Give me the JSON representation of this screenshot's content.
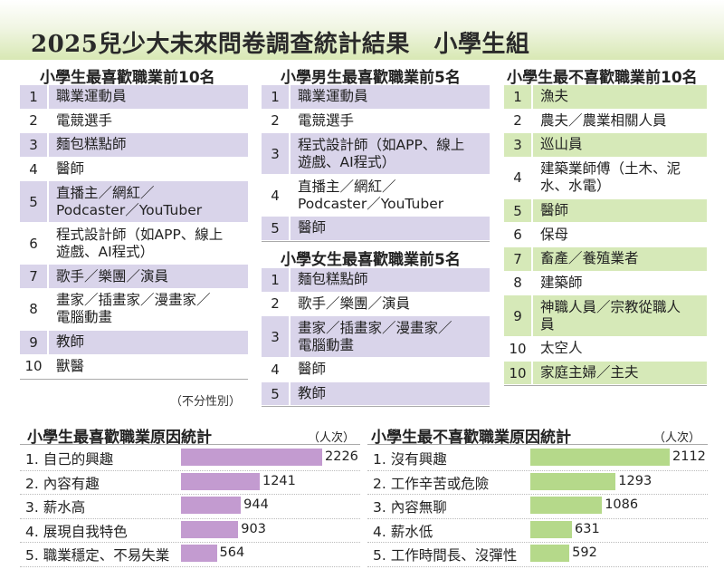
{
  "header": {
    "title": "2025兒少大未來問卷調查統計結果　小學生組"
  },
  "tables": [
    {
      "title": "小學生最喜歡職業前10名",
      "note": "（不分性別）",
      "rows": [
        {
          "rank": "1",
          "job": "職業運動員"
        },
        {
          "rank": "2",
          "job": "電競選手"
        },
        {
          "rank": "3",
          "job": "麵包糕點師"
        },
        {
          "rank": "4",
          "job": "醫師"
        },
        {
          "rank": "5",
          "job": "直播主／網紅／\nPodcaster／YouTuber"
        },
        {
          "rank": "6",
          "job": "程式設計師（如APP、線上\n遊戲、AI程式）"
        },
        {
          "rank": "7",
          "job": "歌手／樂團／演員"
        },
        {
          "rank": "8",
          "job": "畫家／插畫家／漫畫家／\n電腦動畫"
        },
        {
          "rank": "9",
          "job": "教師"
        },
        {
          "rank": "10",
          "job": "獸醫"
        }
      ]
    },
    {
      "title": "小學男生最喜歡職業前5名",
      "rows": [
        {
          "rank": "1",
          "job": "職業運動員"
        },
        {
          "rank": "2",
          "job": "電競選手"
        },
        {
          "rank": "3",
          "job": "程式設計師（如APP、線上\n遊戲、AI程式）"
        },
        {
          "rank": "4",
          "job": "直播主／網紅／\nPodcaster／YouTuber"
        },
        {
          "rank": "5",
          "job": "醫師"
        }
      ]
    },
    {
      "title": "小學女生最喜歡職業前5名",
      "rows": [
        {
          "rank": "1",
          "job": "麵包糕點師"
        },
        {
          "rank": "2",
          "job": "歌手／樂團／演員"
        },
        {
          "rank": "3",
          "job": "畫家／插畫家／漫畫家／\n電腦動畫"
        },
        {
          "rank": "4",
          "job": "醫師"
        },
        {
          "rank": "5",
          "job": "教師"
        }
      ]
    },
    {
      "title": "小學生最不喜歡職業前10名",
      "rows": [
        {
          "rank": "1",
          "job": "漁夫"
        },
        {
          "rank": "2",
          "job": "農夫／農業相關人員"
        },
        {
          "rank": "3",
          "job": "巡山員"
        },
        {
          "rank": "4",
          "job": "建築業師傅（土木、泥\n水、水電）"
        },
        {
          "rank": "5",
          "job": "醫師"
        },
        {
          "rank": "6",
          "job": "保母"
        },
        {
          "rank": "7",
          "job": "畜產／養殖業者"
        },
        {
          "rank": "8",
          "job": "建築師"
        },
        {
          "rank": "9",
          "job": "神職人員／宗教從職人\n員"
        },
        {
          "rank": "10",
          "job": "太空人"
        },
        {
          "rank": "10",
          "job": "家庭主婦／主夫"
        }
      ]
    }
  ],
  "colors": {
    "purple_shade": "#d9d4ea",
    "green_shade": "#d6e9b8",
    "purple_bar": "#c39bd0",
    "green_bar": "#b5d98a"
  },
  "chart_data": [
    {
      "type": "bar",
      "title": "小學生最喜歡職業原因統計",
      "unit": "（人次）",
      "categories": [
        "1. 自己的興趣",
        "2. 內容有趣",
        "3. 薪水高",
        "4. 展現自我特色",
        "5. 職業穩定、不易失業"
      ],
      "values": [
        2226,
        1241,
        944,
        903,
        564
      ],
      "orientation": "horizontal",
      "color": "#c39bd0"
    },
    {
      "type": "bar",
      "title": "小學生最不喜歡職業原因統計",
      "unit": "（人次）",
      "categories": [
        "1. 沒有興趣",
        "2. 工作辛苦或危險",
        "3. 內容無聊",
        "4. 薪水低",
        "5. 工作時間長、沒彈性"
      ],
      "values": [
        2112,
        1293,
        1086,
        631,
        592
      ],
      "orientation": "horizontal",
      "color": "#b5d98a"
    }
  ]
}
